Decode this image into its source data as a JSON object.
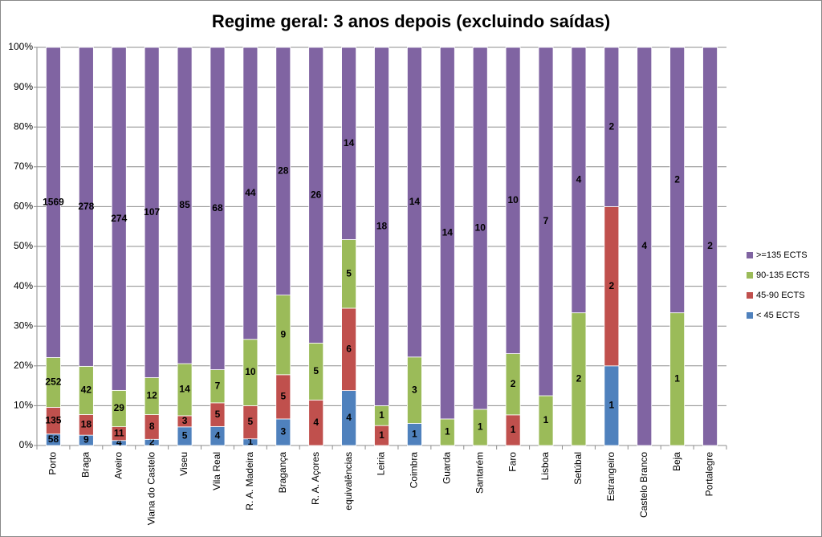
{
  "chart_data": {
    "type": "bar",
    "stacking": "percent",
    "title": "Regime geral: 3 anos depois (excluindo saídas)",
    "categories": [
      "Porto",
      "Braga",
      "Aveiro",
      "Viana do Castelo",
      "Viseu",
      "Vila Real",
      "R. A. Madeira",
      "Bragança",
      "R. A. Açores",
      "equivalências",
      "Leiria",
      "Coimbra",
      "Guarda",
      "Santarém",
      "Faro",
      "Lisboa",
      "Setúbal",
      "Estrangeiro",
      "Castelo Branco",
      "Beja",
      "Portalegre"
    ],
    "series": [
      {
        "name": "< 45 ECTS",
        "color": "#4f81bd",
        "values": [
          58,
          9,
          4,
          2,
          5,
          4,
          1,
          3,
          null,
          4,
          null,
          1,
          null,
          null,
          null,
          null,
          null,
          1,
          null,
          null,
          null
        ]
      },
      {
        "name": "45-90 ECTS",
        "color": "#c0504d",
        "values": [
          135,
          18,
          11,
          8,
          3,
          5,
          5,
          5,
          4,
          6,
          1,
          null,
          null,
          null,
          1,
          null,
          null,
          2,
          null,
          null,
          null
        ]
      },
      {
        "name": "90-135 ECTS",
        "color": "#9bbb59",
        "values": [
          252,
          42,
          29,
          12,
          14,
          7,
          10,
          9,
          5,
          5,
          1,
          3,
          1,
          1,
          2,
          1,
          2,
          null,
          null,
          1,
          null
        ]
      },
      {
        "name": ">=135 ECTS",
        "color": "#8064a2",
        "values": [
          1569,
          278,
          274,
          107,
          85,
          68,
          44,
          28,
          26,
          14,
          18,
          14,
          14,
          10,
          10,
          7,
          4,
          2,
          4,
          2,
          2
        ]
      }
    ],
    "ylim": [
      0,
      100
    ],
    "yticks": [
      {
        "value": 0,
        "label": "0%"
      },
      {
        "value": 10,
        "label": "10%"
      },
      {
        "value": 20,
        "label": "20%"
      },
      {
        "value": 30,
        "label": "30%"
      },
      {
        "value": 40,
        "label": "40%"
      },
      {
        "value": 50,
        "label": "50%"
      },
      {
        "value": 60,
        "label": "60%"
      },
      {
        "value": 70,
        "label": "70%"
      },
      {
        "value": 80,
        "label": "80%"
      },
      {
        "value": 90,
        "label": "90%"
      },
      {
        "value": 100,
        "label": "100%"
      }
    ],
    "grid": true,
    "legend": "right"
  }
}
